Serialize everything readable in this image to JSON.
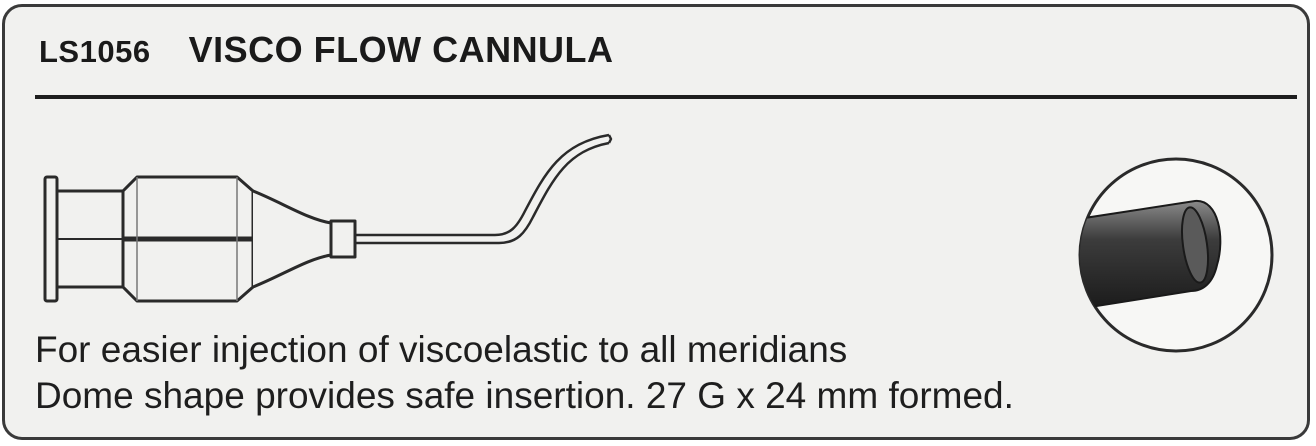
{
  "product": {
    "code": "LS1056",
    "name": "VISCO FLOW CANNULA"
  },
  "description": {
    "line1": "For easier injection of viscoelastic to all meridians",
    "line2": "Dome shape provides safe insertion. 27 G x 24 mm formed."
  },
  "illustrations": {
    "main": "cannula-drawing",
    "detail": "tip-detail-magnified"
  },
  "colors": {
    "background": "#f1f1ef",
    "ink": "#1e1e1e"
  }
}
